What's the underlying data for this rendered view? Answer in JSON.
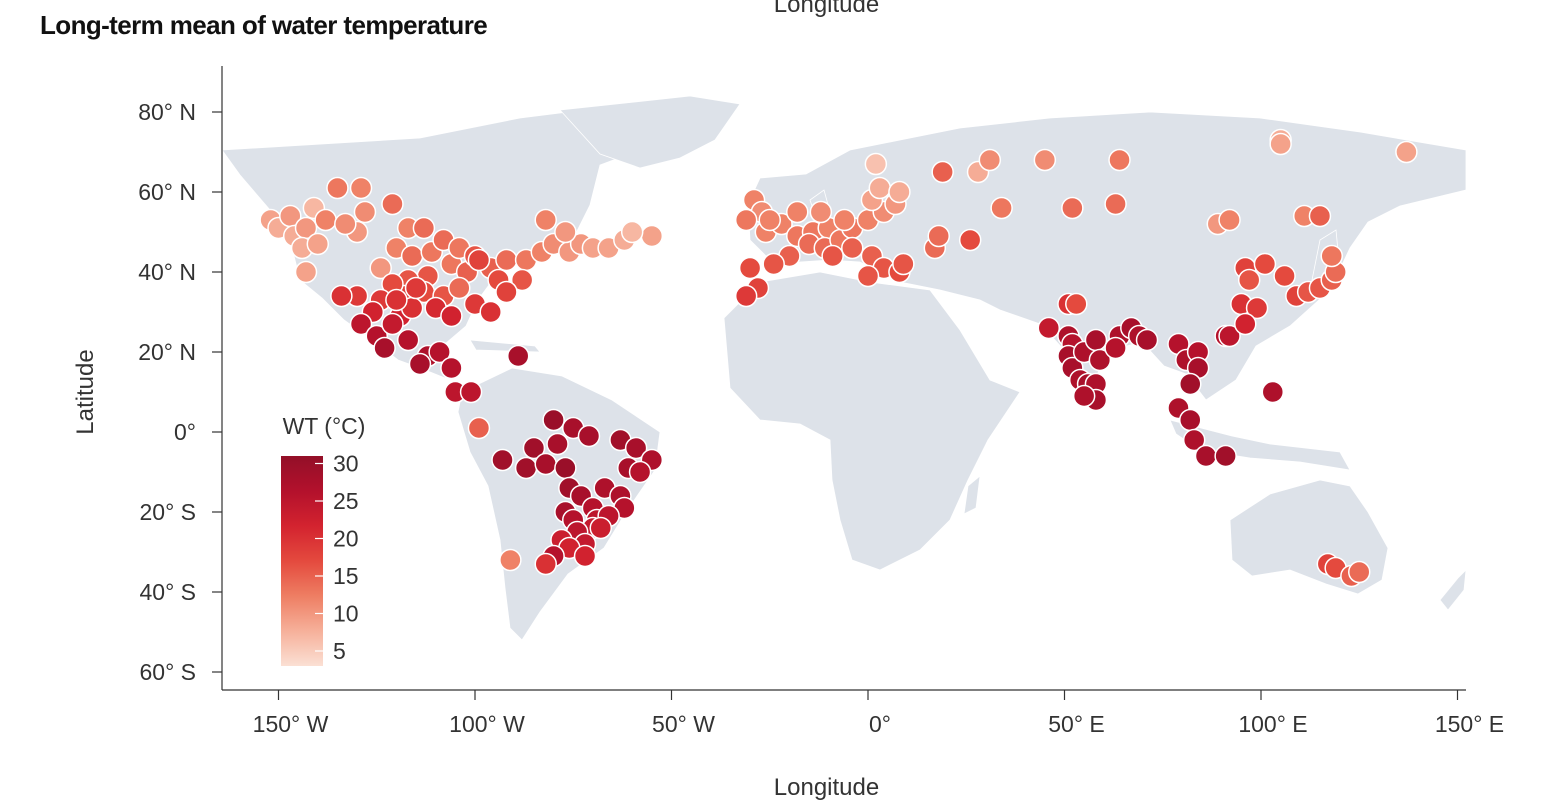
{
  "title": "Long-term mean of water temperature",
  "top_axis_label": "Longitude",
  "chart_data": {
    "type": "scatter",
    "title": "Long-term mean of water temperature",
    "xlabel": "Longitude",
    "ylabel": "Latitude",
    "xlim": [
      -165,
      150
    ],
    "ylim": [
      -67,
      90
    ],
    "x_ticks": [
      {
        "value": -150,
        "label": "150° W"
      },
      {
        "value": -100,
        "label": "100° W"
      },
      {
        "value": -50,
        "label": "50° W"
      },
      {
        "value": 0,
        "label": "0°"
      },
      {
        "value": 50,
        "label": "50° E"
      },
      {
        "value": 100,
        "label": "100° E"
      },
      {
        "value": 150,
        "label": "150° E"
      }
    ],
    "y_ticks": [
      {
        "value": 80,
        "label": "80° N"
      },
      {
        "value": 60,
        "label": "60° N"
      },
      {
        "value": 40,
        "label": "40° N"
      },
      {
        "value": 20,
        "label": "20° N"
      },
      {
        "value": 0,
        "label": "0°"
      },
      {
        "value": -20,
        "label": "20° S"
      },
      {
        "value": -40,
        "label": "40° S"
      },
      {
        "value": -60,
        "label": "60° S"
      }
    ],
    "colorbar": {
      "title": "WT (°C)",
      "range": [
        3,
        31
      ],
      "ticks": [
        30,
        25,
        20,
        15,
        10,
        5
      ],
      "colors": [
        "#fbe0d4",
        "#f6b09a",
        "#ee7e63",
        "#e44a3e",
        "#d3232f",
        "#b3112c",
        "#930f28"
      ]
    },
    "points": [
      {
        "lon": -152,
        "lat": 53,
        "wt": 9
      },
      {
        "lon": -150,
        "lat": 51,
        "wt": 8
      },
      {
        "lon": -147,
        "lat": 54,
        "wt": 10
      },
      {
        "lon": -146,
        "lat": 49,
        "wt": 8
      },
      {
        "lon": -143,
        "lat": 51,
        "wt": 10
      },
      {
        "lon": -141,
        "lat": 56,
        "wt": 7
      },
      {
        "lon": -138,
        "lat": 53,
        "wt": 12
      },
      {
        "lon": -144,
        "lat": 46,
        "wt": 8
      },
      {
        "lon": -140,
        "lat": 47,
        "wt": 9
      },
      {
        "lon": -135,
        "lat": 61,
        "wt": 13
      },
      {
        "lon": -129,
        "lat": 61,
        "wt": 12
      },
      {
        "lon": -128,
        "lat": 55,
        "wt": 11
      },
      {
        "lon": -130,
        "lat": 50,
        "wt": 10
      },
      {
        "lon": -133,
        "lat": 52,
        "wt": 11
      },
      {
        "lon": -143,
        "lat": 40,
        "wt": 9
      },
      {
        "lon": -121,
        "lat": 57,
        "wt": 14
      },
      {
        "lon": -117,
        "lat": 51,
        "wt": 12
      },
      {
        "lon": -113,
        "lat": 51,
        "wt": 14
      },
      {
        "lon": -120,
        "lat": 46,
        "wt": 12
      },
      {
        "lon": -124,
        "lat": 41,
        "wt": 10
      },
      {
        "lon": -116,
        "lat": 44,
        "wt": 14
      },
      {
        "lon": -111,
        "lat": 45,
        "wt": 13
      },
      {
        "lon": -108,
        "lat": 48,
        "wt": 14
      },
      {
        "lon": -112,
        "lat": 39,
        "wt": 16
      },
      {
        "lon": -106,
        "lat": 42,
        "wt": 13
      },
      {
        "lon": -102,
        "lat": 40,
        "wt": 15
      },
      {
        "lon": -104,
        "lat": 46,
        "wt": 13
      },
      {
        "lon": -117,
        "lat": 38,
        "wt": 16
      },
      {
        "lon": -113,
        "lat": 35,
        "wt": 17
      },
      {
        "lon": -108,
        "lat": 34,
        "wt": 16
      },
      {
        "lon": -104,
        "lat": 36,
        "wt": 14
      },
      {
        "lon": -100,
        "lat": 44,
        "wt": 16
      },
      {
        "lon": -96,
        "lat": 41,
        "wt": 15
      },
      {
        "lon": -92,
        "lat": 43,
        "wt": 14
      },
      {
        "lon": -87,
        "lat": 43,
        "wt": 13
      },
      {
        "lon": -83,
        "lat": 45,
        "wt": 12
      },
      {
        "lon": -80,
        "lat": 47,
        "wt": 11
      },
      {
        "lon": -76,
        "lat": 45,
        "wt": 10
      },
      {
        "lon": -73,
        "lat": 47,
        "wt": 10
      },
      {
        "lon": -70,
        "lat": 46,
        "wt": 9
      },
      {
        "lon": -66,
        "lat": 46,
        "wt": 9
      },
      {
        "lon": -62,
        "lat": 48,
        "wt": 8
      },
      {
        "lon": -55,
        "lat": 49,
        "wt": 9
      },
      {
        "lon": -82,
        "lat": 53,
        "wt": 12
      },
      {
        "lon": -77,
        "lat": 50,
        "wt": 10
      },
      {
        "lon": -60,
        "lat": 50,
        "wt": 7
      },
      {
        "lon": -99,
        "lat": 43,
        "wt": 18
      },
      {
        "lon": -94,
        "lat": 38,
        "wt": 17
      },
      {
        "lon": -88,
        "lat": 38,
        "wt": 16
      },
      {
        "lon": -100,
        "lat": 32,
        "wt": 19
      },
      {
        "lon": -96,
        "lat": 30,
        "wt": 20
      },
      {
        "lon": -92,
        "lat": 35,
        "wt": 18
      },
      {
        "lon": -118,
        "lat": 34,
        "wt": 18
      },
      {
        "lon": -121,
        "lat": 37,
        "wt": 17
      },
      {
        "lon": -110,
        "lat": 31,
        "wt": 21
      },
      {
        "lon": -106,
        "lat": 29,
        "wt": 22
      },
      {
        "lon": -130,
        "lat": 34,
        "wt": 19
      },
      {
        "lon": -134,
        "lat": 34,
        "wt": 20
      },
      {
        "lon": -124,
        "lat": 33,
        "wt": 19
      },
      {
        "lon": -126,
        "lat": 30,
        "wt": 22
      },
      {
        "lon": -119,
        "lat": 29,
        "wt": 22
      },
      {
        "lon": -116,
        "lat": 31,
        "wt": 20
      },
      {
        "lon": -129,
        "lat": 27,
        "wt": 25
      },
      {
        "lon": -125,
        "lat": 24,
        "wt": 26
      },
      {
        "lon": -121,
        "lat": 27,
        "wt": 24
      },
      {
        "lon": -123,
        "lat": 21,
        "wt": 28
      },
      {
        "lon": -117,
        "lat": 23,
        "wt": 26
      },
      {
        "lon": -112,
        "lat": 19,
        "wt": 27
      },
      {
        "lon": -109,
        "lat": 20,
        "wt": 26
      },
      {
        "lon": -114,
        "lat": 17,
        "wt": 28
      },
      {
        "lon": -106,
        "lat": 16,
        "wt": 26
      },
      {
        "lon": -105,
        "lat": 10,
        "wt": 25
      },
      {
        "lon": -101,
        "lat": 10,
        "wt": 25
      },
      {
        "lon": -89,
        "lat": 19,
        "wt": 28
      },
      {
        "lon": -99,
        "lat": 1,
        "wt": 15
      },
      {
        "lon": -120,
        "lat": 33,
        "wt": 20
      },
      {
        "lon": -115,
        "lat": 36,
        "wt": 19
      },
      {
        "lon": -80,
        "lat": 3,
        "wt": 30
      },
      {
        "lon": -75,
        "lat": 1,
        "wt": 28
      },
      {
        "lon": -71,
        "lat": -1,
        "wt": 28
      },
      {
        "lon": -85,
        "lat": -4,
        "wt": 29
      },
      {
        "lon": -79,
        "lat": -3,
        "wt": 28
      },
      {
        "lon": -87,
        "lat": -9,
        "wt": 29
      },
      {
        "lon": -82,
        "lat": -8,
        "wt": 28
      },
      {
        "lon": -93,
        "lat": -7,
        "wt": 29
      },
      {
        "lon": -77,
        "lat": -9,
        "wt": 30
      },
      {
        "lon": -63,
        "lat": -2,
        "wt": 29
      },
      {
        "lon": -59,
        "lat": -4,
        "wt": 28
      },
      {
        "lon": -55,
        "lat": -7,
        "wt": 27
      },
      {
        "lon": -61,
        "lat": -9,
        "wt": 28
      },
      {
        "lon": -58,
        "lat": -10,
        "wt": 26
      },
      {
        "lon": -76,
        "lat": -14,
        "wt": 29
      },
      {
        "lon": -73,
        "lat": -16,
        "wt": 28
      },
      {
        "lon": -67,
        "lat": -14,
        "wt": 27
      },
      {
        "lon": -63,
        "lat": -16,
        "wt": 27
      },
      {
        "lon": -62,
        "lat": -19,
        "wt": 26
      },
      {
        "lon": -70,
        "lat": -19,
        "wt": 26
      },
      {
        "lon": -77,
        "lat": -20,
        "wt": 28
      },
      {
        "lon": -75,
        "lat": -22,
        "wt": 26
      },
      {
        "lon": -69,
        "lat": -22,
        "wt": 25
      },
      {
        "lon": -66,
        "lat": -21,
        "wt": 25
      },
      {
        "lon": -70,
        "lat": -24,
        "wt": 24
      },
      {
        "lon": -74,
        "lat": -25,
        "wt": 25
      },
      {
        "lon": -78,
        "lat": -27,
        "wt": 23
      },
      {
        "lon": -72,
        "lat": -28,
        "wt": 24
      },
      {
        "lon": -76,
        "lat": -29,
        "wt": 22
      },
      {
        "lon": -80,
        "lat": -31,
        "wt": 26
      },
      {
        "lon": -91,
        "lat": -32,
        "wt": 12
      },
      {
        "lon": -82,
        "lat": -33,
        "wt": 20
      },
      {
        "lon": -68,
        "lat": -24,
        "wt": 23
      },
      {
        "lon": -72,
        "lat": -31,
        "wt": 22
      },
      {
        "lon": -29,
        "lat": 58,
        "wt": 12
      },
      {
        "lon": -27,
        "lat": 55,
        "wt": 11
      },
      {
        "lon": -31,
        "lat": 53,
        "wt": 13
      },
      {
        "lon": -26,
        "lat": 50,
        "wt": 12
      },
      {
        "lon": -22,
        "lat": 52,
        "wt": 12
      },
      {
        "lon": -18,
        "lat": 49,
        "wt": 13
      },
      {
        "lon": -14,
        "lat": 50,
        "wt": 13
      },
      {
        "lon": -10,
        "lat": 51,
        "wt": 12
      },
      {
        "lon": -15,
        "lat": 47,
        "wt": 14
      },
      {
        "lon": -11,
        "lat": 46,
        "wt": 14
      },
      {
        "lon": -7,
        "lat": 48,
        "wt": 13
      },
      {
        "lon": -4,
        "lat": 51,
        "wt": 13
      },
      {
        "lon": 0,
        "lat": 53,
        "wt": 12
      },
      {
        "lon": 4,
        "lat": 55,
        "wt": 11
      },
      {
        "lon": 7,
        "lat": 57,
        "wt": 10
      },
      {
        "lon": 1,
        "lat": 58,
        "wt": 9
      },
      {
        "lon": 3,
        "lat": 61,
        "wt": 8
      },
      {
        "lon": 8,
        "lat": 60,
        "wt": 8
      },
      {
        "lon": 2,
        "lat": 67,
        "wt": 6
      },
      {
        "lon": -20,
        "lat": 44,
        "wt": 15
      },
      {
        "lon": -24,
        "lat": 42,
        "wt": 16
      },
      {
        "lon": -30,
        "lat": 41,
        "wt": 17
      },
      {
        "lon": -28,
        "lat": 36,
        "wt": 18
      },
      {
        "lon": -31,
        "lat": 34,
        "wt": 19
      },
      {
        "lon": -9,
        "lat": 44,
        "wt": 16
      },
      {
        "lon": -4,
        "lat": 46,
        "wt": 15
      },
      {
        "lon": 1,
        "lat": 44,
        "wt": 15
      },
      {
        "lon": 4,
        "lat": 41,
        "wt": 16
      },
      {
        "lon": 0,
        "lat": 39,
        "wt": 16
      },
      {
        "lon": 8,
        "lat": 40,
        "wt": 17
      },
      {
        "lon": 9,
        "lat": 42,
        "wt": 16
      },
      {
        "lon": 17,
        "lat": 46,
        "wt": 14
      },
      {
        "lon": 18,
        "lat": 49,
        "wt": 14
      },
      {
        "lon": 26,
        "lat": 48,
        "wt": 17
      },
      {
        "lon": 19,
        "lat": 65,
        "wt": 15
      },
      {
        "lon": 28,
        "lat": 65,
        "wt": 8
      },
      {
        "lon": 31,
        "lat": 68,
        "wt": 11
      },
      {
        "lon": 45,
        "lat": 68,
        "wt": 11
      },
      {
        "lon": 64,
        "lat": 68,
        "wt": 13
      },
      {
        "lon": 34,
        "lat": 56,
        "wt": 13
      },
      {
        "lon": 52,
        "lat": 56,
        "wt": 14
      },
      {
        "lon": 63,
        "lat": 57,
        "wt": 14
      },
      {
        "lon": -25,
        "lat": 53,
        "wt": 12
      },
      {
        "lon": -18,
        "lat": 55,
        "wt": 12
      },
      {
        "lon": -12,
        "lat": 55,
        "wt": 11
      },
      {
        "lon": -6,
        "lat": 53,
        "wt": 12
      },
      {
        "lon": 46,
        "lat": 26,
        "wt": 24
      },
      {
        "lon": 51,
        "lat": 32,
        "wt": 20
      },
      {
        "lon": 53,
        "lat": 32,
        "wt": 17
      },
      {
        "lon": 51,
        "lat": 24,
        "wt": 27
      },
      {
        "lon": 52,
        "lat": 22,
        "wt": 26
      },
      {
        "lon": 51,
        "lat": 19,
        "wt": 28
      },
      {
        "lon": 52,
        "lat": 16,
        "wt": 28
      },
      {
        "lon": 54,
        "lat": 13,
        "wt": 27
      },
      {
        "lon": 56,
        "lat": 12,
        "wt": 28
      },
      {
        "lon": 55,
        "lat": 20,
        "wt": 27
      },
      {
        "lon": 58,
        "lat": 23,
        "wt": 28
      },
      {
        "lon": 59,
        "lat": 18,
        "wt": 27
      },
      {
        "lon": 58,
        "lat": 12,
        "wt": 27
      },
      {
        "lon": 58,
        "lat": 8,
        "wt": 28
      },
      {
        "lon": 55,
        "lat": 9,
        "wt": 27
      },
      {
        "lon": 64,
        "lat": 24,
        "wt": 27
      },
      {
        "lon": 67,
        "lat": 26,
        "wt": 28
      },
      {
        "lon": 69,
        "lat": 24,
        "wt": 27
      },
      {
        "lon": 63,
        "lat": 21,
        "wt": 26
      },
      {
        "lon": 71,
        "lat": 23,
        "wt": 28
      },
      {
        "lon": 79,
        "lat": 22,
        "wt": 26
      },
      {
        "lon": 81,
        "lat": 18,
        "wt": 27
      },
      {
        "lon": 84,
        "lat": 20,
        "wt": 26
      },
      {
        "lon": 84,
        "lat": 16,
        "wt": 28
      },
      {
        "lon": 82,
        "lat": 12,
        "wt": 29
      },
      {
        "lon": 79,
        "lat": 6,
        "wt": 27
      },
      {
        "lon": 82,
        "lat": 3,
        "wt": 28
      },
      {
        "lon": 83,
        "lat": -2,
        "wt": 27
      },
      {
        "lon": 86,
        "lat": -6,
        "wt": 28
      },
      {
        "lon": 91,
        "lat": -6,
        "wt": 29
      },
      {
        "lon": 91,
        "lat": 24,
        "wt": 26
      },
      {
        "lon": 92,
        "lat": 24,
        "wt": 25
      },
      {
        "lon": 103,
        "lat": 10,
        "wt": 27
      },
      {
        "lon": 96,
        "lat": 41,
        "wt": 18
      },
      {
        "lon": 97,
        "lat": 38,
        "wt": 16
      },
      {
        "lon": 101,
        "lat": 42,
        "wt": 17
      },
      {
        "lon": 95,
        "lat": 32,
        "wt": 20
      },
      {
        "lon": 99,
        "lat": 31,
        "wt": 19
      },
      {
        "lon": 96,
        "lat": 27,
        "wt": 22
      },
      {
        "lon": 106,
        "lat": 39,
        "wt": 17
      },
      {
        "lon": 109,
        "lat": 34,
        "wt": 18
      },
      {
        "lon": 112,
        "lat": 35,
        "wt": 16
      },
      {
        "lon": 115,
        "lat": 36,
        "wt": 16
      },
      {
        "lon": 118,
        "lat": 38,
        "wt": 15
      },
      {
        "lon": 119,
        "lat": 40,
        "wt": 14
      },
      {
        "lon": 118,
        "lat": 44,
        "wt": 13
      },
      {
        "lon": 111,
        "lat": 54,
        "wt": 12
      },
      {
        "lon": 115,
        "lat": 54,
        "wt": 15
      },
      {
        "lon": 89,
        "lat": 52,
        "wt": 10
      },
      {
        "lon": 92,
        "lat": 53,
        "wt": 12
      },
      {
        "lon": 105,
        "lat": 73,
        "wt": 8
      },
      {
        "lon": 105,
        "lat": 72,
        "wt": 9
      },
      {
        "lon": 137,
        "lat": 70,
        "wt": 9
      },
      {
        "lon": 117,
        "lat": -33,
        "wt": 18
      },
      {
        "lon": 119,
        "lat": -34,
        "wt": 17
      },
      {
        "lon": 123,
        "lat": -36,
        "wt": 15
      },
      {
        "lon": 125,
        "lat": -35,
        "wt": 14
      }
    ]
  }
}
